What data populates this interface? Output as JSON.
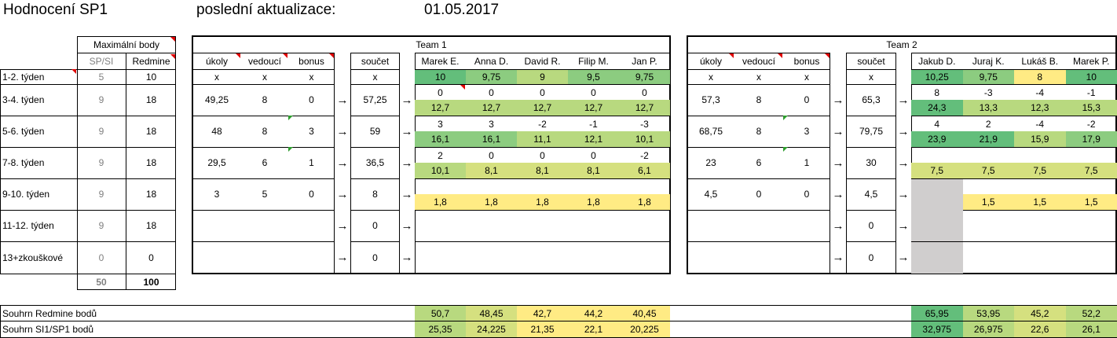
{
  "header": {
    "title": "Hodnocení SP1",
    "update_label": "poslední aktualizace:",
    "update_date": "01.05.2017"
  },
  "max_points": {
    "group_label": "Maximální body",
    "col_spsi": "SP/SI",
    "col_redmine": "Redmine",
    "total_spsi": "50",
    "total_redmine": "100"
  },
  "weeks": [
    {
      "label": "1-2. týden",
      "spsi": "5",
      "redmine": "10"
    },
    {
      "label": "3-4. týden",
      "spsi": "9",
      "redmine": "18"
    },
    {
      "label": "5-6. týden",
      "spsi": "9",
      "redmine": "18"
    },
    {
      "label": "7-8. týden",
      "spsi": "9",
      "redmine": "18"
    },
    {
      "label": "9-10. týden",
      "spsi": "9",
      "redmine": "18"
    },
    {
      "label": "11-12. týden",
      "spsi": "9",
      "redmine": "18"
    },
    {
      "label": "13+zkouškové",
      "spsi": "0",
      "redmine": "0"
    }
  ],
  "col_headers": {
    "ukoly": "úkoly",
    "vedouci": "vedoucí",
    "bonus": "bonus",
    "soucet": "součet"
  },
  "team1": {
    "title": "Team 1",
    "members": [
      "Marek E.",
      "Anna D.",
      "David R.",
      "Filip M.",
      "Jan P."
    ],
    "rows": [
      {
        "ukoly": "x",
        "vedouci": "x",
        "bonus": "x",
        "soucet": "x"
      },
      {
        "ukoly": "49,25",
        "vedouci": "8",
        "bonus": "0",
        "soucet": "57,25"
      },
      {
        "ukoly": "48",
        "vedouci": "8",
        "bonus": "3",
        "soucet": "59"
      },
      {
        "ukoly": "29,5",
        "vedouci": "6",
        "bonus": "1",
        "soucet": "36,5"
      },
      {
        "ukoly": "3",
        "vedouci": "5",
        "bonus": "0",
        "soucet": "8"
      },
      {
        "ukoly": "",
        "vedouci": "",
        "bonus": "",
        "soucet": "0"
      },
      {
        "ukoly": "",
        "vedouci": "",
        "bonus": "",
        "soucet": "0"
      }
    ],
    "scores": [
      {
        "top": [
          "10",
          "9,75",
          "9",
          "9,5",
          "9,75"
        ],
        "bottom": null
      },
      {
        "top": [
          "0",
          "0",
          "0",
          "0",
          "0"
        ],
        "bottom": [
          "12,7",
          "12,7",
          "12,7",
          "12,7",
          "12,7"
        ]
      },
      {
        "top": [
          "3",
          "3",
          "-2",
          "-1",
          "-3"
        ],
        "bottom": [
          "16,1",
          "16,1",
          "11,1",
          "12,1",
          "10,1"
        ]
      },
      {
        "top": [
          "2",
          "0",
          "0",
          "0",
          "-2"
        ],
        "bottom": [
          "10,1",
          "8,1",
          "8,1",
          "8,1",
          "6,1"
        ]
      },
      {
        "top": [
          "",
          "",
          "",
          "",
          ""
        ],
        "bottom": [
          "1,8",
          "1,8",
          "1,8",
          "1,8",
          "1,8"
        ]
      }
    ],
    "summary_redmine": [
      "50,7",
      "48,45",
      "42,7",
      "44,2",
      "40,45"
    ],
    "summary_spsi": [
      "25,35",
      "24,225",
      "21,35",
      "22,1",
      "20,225"
    ]
  },
  "team2": {
    "title": "Team 2",
    "members": [
      "Jakub D.",
      "Juraj K.",
      "Lukáš B.",
      "Marek P."
    ],
    "rows": [
      {
        "ukoly": "x",
        "vedouci": "x",
        "bonus": "x",
        "soucet": "x"
      },
      {
        "ukoly": "57,3",
        "vedouci": "8",
        "bonus": "0",
        "soucet": "65,3"
      },
      {
        "ukoly": "68,75",
        "vedouci": "8",
        "bonus": "3",
        "soucet": "79,75"
      },
      {
        "ukoly": "23",
        "vedouci": "6",
        "bonus": "1",
        "soucet": "30"
      },
      {
        "ukoly": "4,5",
        "vedouci": "0",
        "bonus": "0",
        "soucet": "4,5"
      },
      {
        "ukoly": "",
        "vedouci": "",
        "bonus": "",
        "soucet": "0"
      },
      {
        "ukoly": "",
        "vedouci": "",
        "bonus": "",
        "soucet": "0"
      }
    ],
    "scores": [
      {
        "top": [
          "10,25",
          "9,75",
          "8",
          "10"
        ],
        "bottom": null
      },
      {
        "top": [
          "8",
          "-3",
          "-4",
          "-1"
        ],
        "bottom": [
          "24,3",
          "13,3",
          "12,3",
          "15,3"
        ]
      },
      {
        "top": [
          "4",
          "2",
          "-4",
          "-2"
        ],
        "bottom": [
          "23,9",
          "21,9",
          "15,9",
          "17,9"
        ]
      },
      {
        "top": [
          "",
          "",
          "",
          ""
        ],
        "bottom": [
          "",
          "7,5",
          "7,5",
          "7,5"
        ],
        "bottom_extra": "7,5"
      },
      {
        "top": [
          "",
          "",
          "",
          ""
        ],
        "bottom": [
          "",
          "1,5",
          "1,5",
          "1,5"
        ]
      }
    ],
    "summary_redmine": [
      "65,95",
      "53,95",
      "45,2",
      "52,2"
    ],
    "summary_spsi": [
      "32,975",
      "26,975",
      "22,6",
      "26,1"
    ]
  },
  "summary": {
    "redmine_label": "Souhrn Redmine bodů",
    "spsi_label": "Souhrn SI1/SP1 bodů"
  },
  "arrow_glyph": "→",
  "colors": {
    "green_dark": "#63be7b",
    "green_mid": "#8ccc80",
    "green_light": "#b8d97f",
    "yellow_green": "#d5e07f",
    "yellow": "#ffeb84",
    "gray_fill": "#d0cece",
    "red_marker": "#e00000",
    "green_marker": "#2e9e2e"
  }
}
